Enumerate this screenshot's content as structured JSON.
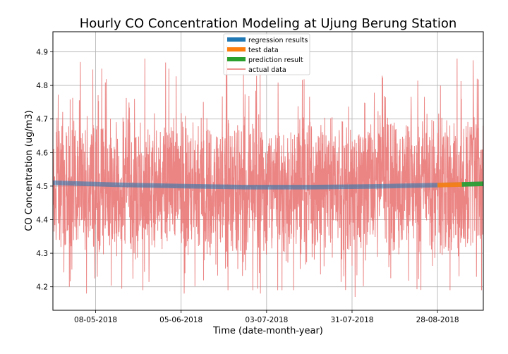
{
  "chart_data": {
    "type": "line",
    "title": "Hourly CO Concentration Modeling at Ujung Berung Station",
    "xlabel": "Time (date-month-year)",
    "ylabel": "CO Concentration (ug/m3)",
    "xlim": [
      "2018-04-24",
      "2018-09-12"
    ],
    "ylim": [
      4.13,
      4.96
    ],
    "x_ticks": [
      "08-05-2018",
      "05-06-2018",
      "03-07-2018",
      "31-07-2018",
      "28-08-2018"
    ],
    "y_ticks": [
      4.2,
      4.3,
      4.4,
      4.5,
      4.6,
      4.7,
      4.8,
      4.9
    ],
    "grid": true,
    "legend_position": "top-center",
    "series": [
      {
        "name": "regression results",
        "color": "#1f77b4",
        "x": [
          "2018-04-24",
          "2018-05-15",
          "2018-06-05",
          "2018-06-26",
          "2018-07-17",
          "2018-08-07",
          "2018-08-28",
          "2018-09-12"
        ],
        "values": [
          4.51,
          4.504,
          4.5,
          4.497,
          4.497,
          4.499,
          4.503,
          4.507
        ]
      },
      {
        "name": "test data",
        "color": "#ff7f0e",
        "x": [
          "2018-08-28",
          "2018-09-05"
        ],
        "values": [
          4.503,
          4.505
        ]
      },
      {
        "name": "prediction result",
        "color": "#2ca02c",
        "x": [
          "2018-09-05",
          "2018-09-12"
        ],
        "values": [
          4.505,
          4.507
        ]
      },
      {
        "name": "actual data",
        "color": "#e8706e",
        "sampling": "hourly",
        "x_range": [
          "2018-04-24",
          "2018-09-12"
        ],
        "mean": 4.5,
        "min": 4.17,
        "max": 4.92,
        "peaks": [
          {
            "x": "2018-05-03",
            "y": 4.87
          },
          {
            "x": "2018-05-10",
            "y": 4.85
          },
          {
            "x": "2018-06-01",
            "y": 4.85
          },
          {
            "x": "2018-06-20",
            "y": 4.92
          },
          {
            "x": "2018-09-10",
            "y": 4.82
          }
        ],
        "troughs": [
          {
            "x": "2018-05-05",
            "y": 4.18
          },
          {
            "x": "2018-06-06",
            "y": 4.18
          },
          {
            "x": "2018-07-01",
            "y": 4.18
          },
          {
            "x": "2018-08-01",
            "y": 4.17
          }
        ]
      }
    ]
  }
}
